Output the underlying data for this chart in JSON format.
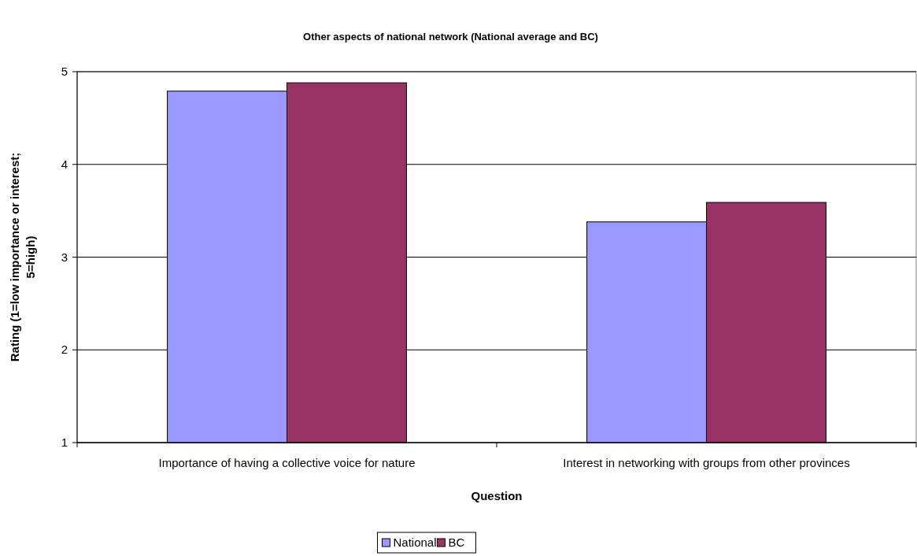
{
  "chart_data": {
    "type": "bar",
    "title": "Other aspects of national network (National average and BC)",
    "xlabel": "Question",
    "ylabel": "Rating (1=low importance or interest; 5=high)",
    "categories": [
      "Importance of having a collective voice for nature",
      "Interest in networking with groups from other provinces"
    ],
    "series": [
      {
        "name": "National",
        "color": "#9999ff",
        "values": [
          4.79,
          3.38
        ]
      },
      {
        "name": "BC",
        "color": "#993366",
        "values": [
          4.88,
          3.59
        ]
      }
    ],
    "ylim": [
      1,
      5
    ],
    "yticks": [
      1,
      2,
      3,
      4,
      5
    ],
    "grid": "y",
    "legend": "bottom"
  }
}
